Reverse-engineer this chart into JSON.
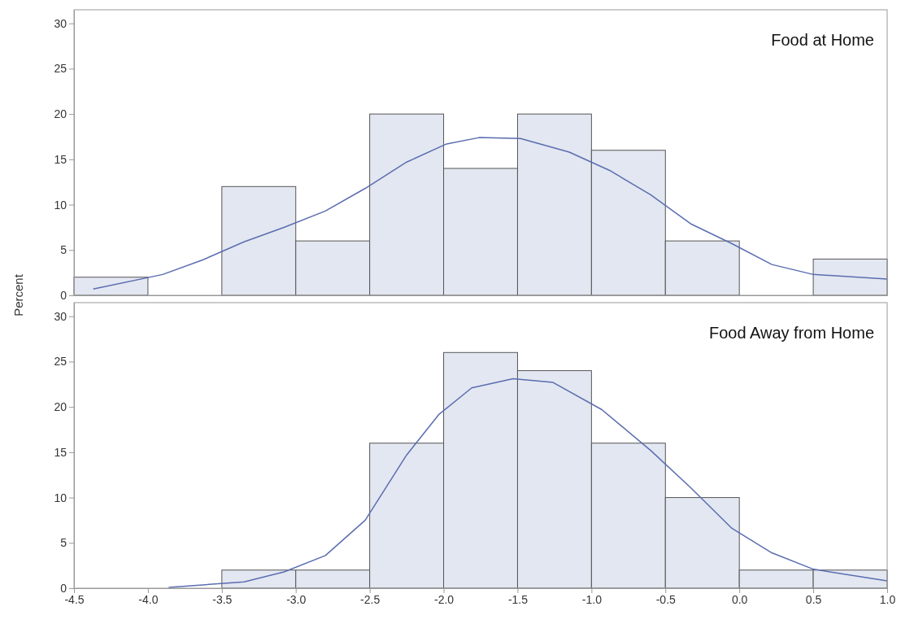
{
  "chart_data": [
    {
      "type": "histogram",
      "title": "Food at Home",
      "ylabel": "Percent",
      "tick_labels": "y",
      "color": "#e3e7f1",
      "bins": [
        -4.5,
        -4.0,
        -3.5,
        -3.0,
        -2.5,
        -2.0,
        -1.5,
        -1.0,
        -0.5,
        0.0,
        0.5,
        1.0
      ],
      "values": [
        2,
        0,
        12,
        6,
        20,
        14,
        20,
        16,
        6,
        0,
        4
      ],
      "series": [
        {
          "type": "line",
          "color": "#5a6db0",
          "x": [
            -4.37,
            -3.9,
            -3.63,
            -3.35,
            -3.08,
            -2.8,
            -2.53,
            -2.25,
            -1.98,
            -1.76,
            -1.48,
            -1.15,
            -0.88,
            -0.6,
            -0.33,
            -0.05,
            0.22,
            0.5,
            1.0
          ],
          "values": [
            0.7,
            2.3,
            3.9,
            5.9,
            7.5,
            9.3,
            11.8,
            14.7,
            16.7,
            17.4,
            17.3,
            15.8,
            13.8,
            11.1,
            7.9,
            5.7,
            3.4,
            2.3,
            1.8
          ]
        }
      ],
      "xlim": [
        -4.5,
        1.0
      ],
      "ylim": [
        0,
        31.5
      ],
      "yticks": [
        0,
        5,
        10,
        15,
        20,
        25,
        30
      ]
    },
    {
      "type": "histogram",
      "title": "Food Away from Home",
      "color": "#e3e7f1",
      "bins": [
        -4.5,
        -4.0,
        -3.5,
        -3.0,
        -2.5,
        -2.0,
        -1.5,
        -1.0,
        -0.5,
        0.0,
        0.5,
        1.0
      ],
      "values": [
        0,
        0,
        2,
        2,
        16,
        26,
        24,
        16,
        10,
        2,
        2
      ],
      "series": [
        {
          "type": "line",
          "color": "#5a6db0",
          "x": [
            -3.86,
            -3.35,
            -3.08,
            -2.8,
            -2.53,
            -2.25,
            -2.03,
            -1.81,
            -1.53,
            -1.26,
            -0.93,
            -0.6,
            -0.33,
            -0.05,
            0.22,
            0.5,
            1.0
          ],
          "values": [
            0.1,
            0.7,
            1.8,
            3.6,
            7.5,
            14.7,
            19.2,
            22.1,
            23.1,
            22.7,
            19.7,
            15.2,
            11.1,
            6.6,
            3.9,
            2.1,
            0.8
          ]
        }
      ],
      "xlim": [
        -4.5,
        1.0
      ],
      "ylim": [
        0,
        31.5
      ],
      "xticks": [
        -4.5,
        {
          "value": -4,
          "label": "-4.0"
        },
        -3.5,
        {
          "value": -3,
          "label": "-3.0"
        },
        -2.5,
        {
          "value": -2,
          "label": "-2.0"
        },
        -1.5,
        {
          "value": -1,
          "label": "-1.0"
        },
        -0.5,
        {
          "value": 0,
          "label": "0.0"
        },
        0.5,
        {
          "value": 1,
          "label": "1.0"
        }
      ],
      "yticks": [
        0,
        5,
        10,
        15,
        20,
        25,
        30
      ]
    }
  ]
}
